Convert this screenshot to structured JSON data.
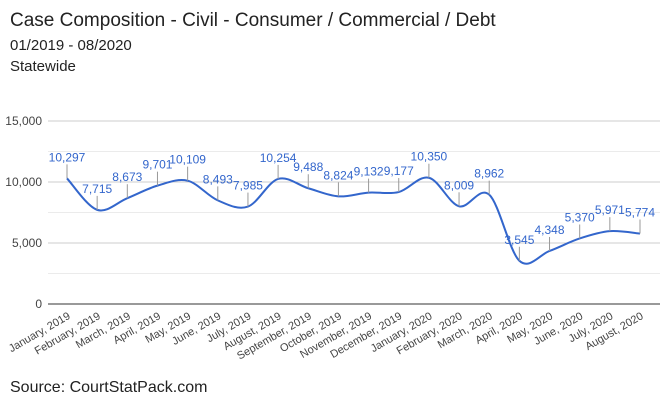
{
  "title": "Case Composition - Civil - Consumer / Commercial / Debt",
  "subtitle": "01/2019 - 08/2020",
  "region": "Statewide",
  "source": "Source: CourtStatPack.com",
  "chart_data": {
    "type": "line",
    "title": "Case Composition - Civil - Consumer / Commercial / Debt",
    "xlabel": "",
    "ylabel": "",
    "ylim": [
      0,
      15000
    ],
    "yticks": [
      "0",
      "5,000",
      "10,000",
      "15,000"
    ],
    "yticks_values": [
      0,
      5000,
      10000,
      15000
    ],
    "grid": true,
    "legend": "none",
    "color": "#3366cc",
    "categories": [
      "January, 2019",
      "February, 2019",
      "March, 2019",
      "April, 2019",
      "May, 2019",
      "June, 2019",
      "July, 2019",
      "August, 2019",
      "September, 2019",
      "October, 2019",
      "November, 2019",
      "December, 2019",
      "January, 2020",
      "February, 2020",
      "March, 2020",
      "April, 2020",
      "May, 2020",
      "June, 2020",
      "July, 2020",
      "August, 2020"
    ],
    "values": [
      10297,
      7715,
      8673,
      9701,
      10109,
      8493,
      7985,
      10254,
      9488,
      8824,
      9132,
      9177,
      10350,
      8009,
      8962,
      3545,
      4348,
      5370,
      5971,
      5774
    ],
    "labels": [
      "10,297",
      "7,715",
      "8,673",
      "9,701",
      "10,109",
      "8,493",
      "7,985",
      "10,254",
      "9,488",
      "8,824",
      "9,132",
      "9,177",
      "10,350",
      "8,009",
      "8,962",
      "3,545",
      "4,348",
      "5,370",
      "5,971",
      "5,774"
    ]
  }
}
